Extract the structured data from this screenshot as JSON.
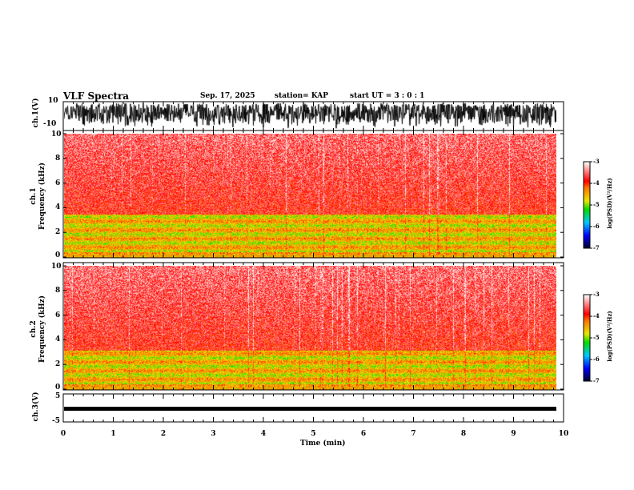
{
  "header": {
    "title": "VLF Spectra",
    "date": "Sep. 17, 2025",
    "station": "station= KAP",
    "start": "start  UT =   3  : 0  : 1"
  },
  "chart_data": [
    {
      "type": "line",
      "name": "ch1-waveform",
      "ylabel": "ch.1(V)",
      "ylim": [
        -10,
        10
      ],
      "yticks": [
        "10",
        "-10"
      ],
      "xlim": [
        0,
        10
      ],
      "data_end_min": 9.85,
      "description_values": "dense noise waveform spanning full range"
    },
    {
      "type": "heatmap",
      "name": "ch1-spectrogram",
      "ylabel": "ch.1\nFrequency (kHz)",
      "ylabel_ch": "ch.1",
      "ylabel_freq": "Frequency (kHz)",
      "ylim": [
        0,
        10
      ],
      "yticks": [
        "0",
        "2",
        "4",
        "6",
        "8",
        "10"
      ],
      "xlim": [
        0,
        10
      ],
      "intense_band_khz": [
        0.5,
        3.5
      ]
    },
    {
      "type": "heatmap",
      "name": "ch2-spectrogram",
      "ylabel_ch": "ch.2",
      "ylabel_freq": "Frequency (kHz)",
      "ylim": [
        0,
        10
      ],
      "yticks": [
        "0",
        "2",
        "4",
        "6",
        "8",
        "10"
      ],
      "xlim": [
        0,
        10
      ],
      "intense_band_khz": [
        0.5,
        3.2
      ]
    },
    {
      "type": "line",
      "name": "ch3-waveform",
      "ylabel": "ch.3(V)",
      "ylim": [
        -5,
        5
      ],
      "yticks": [
        "5",
        "-5"
      ],
      "xlim": [
        0,
        10
      ],
      "level_v": 0.5
    },
    {
      "type": "colorbar",
      "label": "log(PSD)(V²/Hz)",
      "range": [
        -7,
        -3
      ],
      "ticks": [
        "-3",
        "-4",
        "-5",
        "-6",
        "-7"
      ]
    }
  ],
  "xaxis": {
    "label": "Time  (min)",
    "ticks": [
      "0",
      "1",
      "2",
      "3",
      "4",
      "5",
      "6",
      "7",
      "8",
      "9",
      "10"
    ]
  }
}
